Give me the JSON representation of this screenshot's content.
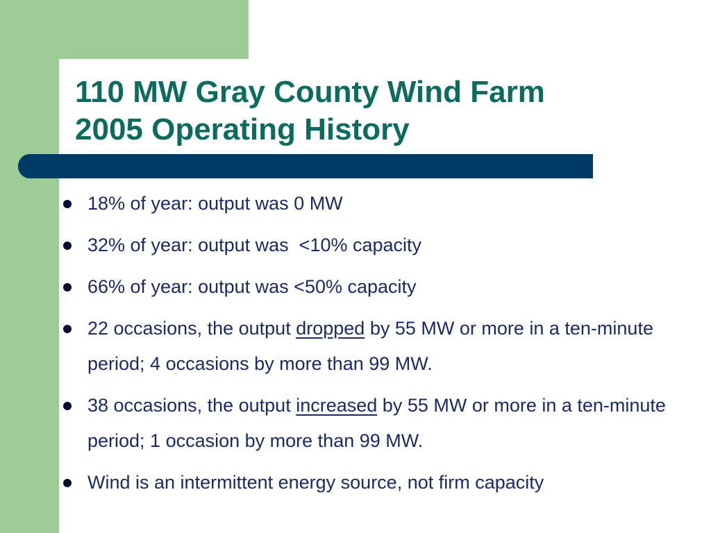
{
  "slide": {
    "title_line1": "110 MW Gray County Wind Farm",
    "title_line2": "2005 Operating History",
    "bullets": [
      {
        "text": "18% of year: output was 0 MW"
      },
      {
        "text": "32% of year: output was  <10% capacity"
      },
      {
        "text": "66% of year: output was <50% capacity"
      },
      {
        "pre": "22 occasions, the output ",
        "emph": "dropped",
        "post": " by 55 MW or more in a ten-minute period; 4 occasions by more than 99 MW."
      },
      {
        "pre": "38 occasions, the output ",
        "emph": "increased",
        "post": " by 55 MW or more in a ten-minute period; 1 occasion by more than 99 MW."
      },
      {
        "text": "Wind is an intermittent energy source, not firm capacity"
      }
    ]
  },
  "colors": {
    "accent_green": "#9dcc96",
    "title_teal": "#0b6b5f",
    "bar_navy": "#003a66",
    "body_text": "#1a2a66"
  }
}
